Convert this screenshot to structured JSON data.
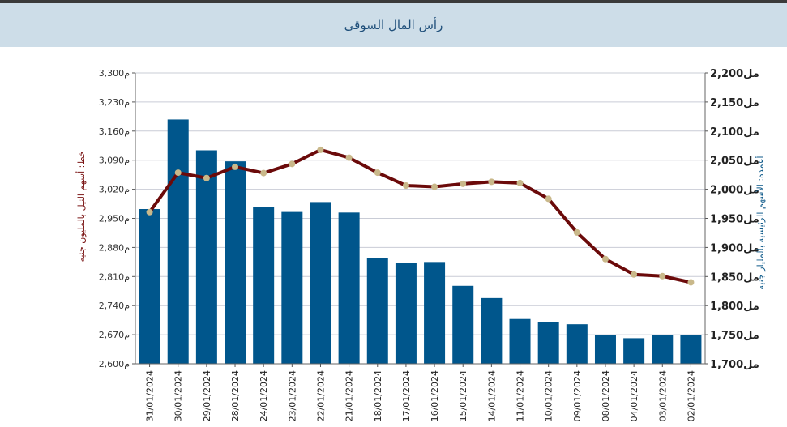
{
  "header": {
    "title": "رأس المال السوقى"
  },
  "colors": {
    "bar": "#00568c",
    "line": "#6b0a0a",
    "marker": "#c9b88a",
    "grid": "#c9ccd6",
    "header_bg": "#cddde8"
  },
  "chart_data": {
    "type": "bar+line",
    "categories": [
      "31/01/2024",
      "30/01/2024",
      "29/01/2024",
      "28/01/2024",
      "24/01/2024",
      "23/01/2024",
      "22/01/2024",
      "21/01/2024",
      "18/01/2024",
      "17/01/2024",
      "16/01/2024",
      "15/01/2024",
      "14/01/2024",
      "11/01/2024",
      "10/01/2024",
      "09/01/2024",
      "08/01/2024",
      "04/01/2024",
      "03/01/2024",
      "02/01/2024"
    ],
    "bars": {
      "axis": "right",
      "values": [
        1966,
        2120,
        2067,
        2048,
        1969,
        1961,
        1978,
        1960,
        1882,
        1874,
        1875,
        1834,
        1813,
        1777,
        1772,
        1768,
        1749,
        1744,
        1750,
        1750
      ]
    },
    "line": {
      "axis": "left",
      "values": [
        2965,
        3060,
        3047,
        3074,
        3059,
        3081,
        3115,
        3096,
        3060,
        3029,
        3026,
        3033,
        3038,
        3035,
        2997,
        2916,
        2852,
        2815,
        2811,
        2796
      ]
    },
    "left_axis": {
      "label": "خط: أسهم النيل بالمليون جنيه",
      "ylim": [
        2600,
        3300
      ],
      "ticks": [
        "2,600م",
        "2,670م",
        "2,740م",
        "2,810م",
        "2,880م",
        "2,950م",
        "3,020م",
        "3,090م",
        "3,160م",
        "3,230م",
        "3,300م"
      ]
    },
    "right_axis": {
      "label": "أعمدة: الأسهم الرئيسية بالمليار جنيه",
      "ylim": [
        1700,
        2200
      ],
      "ticks": [
        "1,700مل",
        "1,750مل",
        "1,800مل",
        "1,850مل",
        "1,900مل",
        "1,950مل",
        "2,000مل",
        "2,050مل",
        "2,100مل",
        "2,150مل",
        "2,200مل"
      ]
    },
    "grid": true
  }
}
